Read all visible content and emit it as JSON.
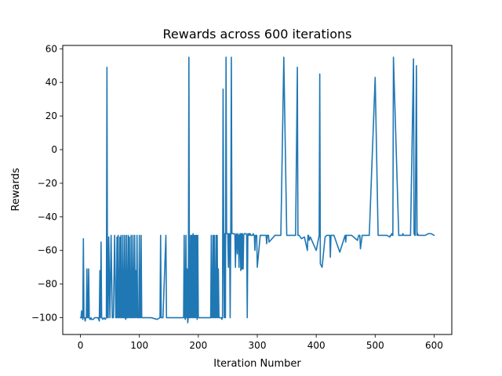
{
  "chart_data": {
    "type": "line",
    "title": "Rewards across 600 iterations",
    "xlabel": "Iteration Number",
    "ylabel": "Rewards",
    "xlim": [
      -30,
      630
    ],
    "ylim": [
      -110,
      62
    ],
    "xticks": [
      0,
      100,
      200,
      300,
      400,
      500,
      600
    ],
    "yticks": [
      -100,
      -80,
      -60,
      -40,
      -20,
      0,
      20,
      40,
      60
    ],
    "tick_labels_x": [
      "0",
      "100",
      "200",
      "300",
      "400",
      "500",
      "600"
    ],
    "tick_labels_y": [
      "−100",
      "−80",
      "−60",
      "−40",
      "−20",
      "0",
      "20",
      "40",
      "60"
    ],
    "grid": false,
    "series": [
      {
        "name": "rewards",
        "color": "#1f77b4",
        "x": [
          0,
          1,
          2,
          3,
          4,
          5,
          6,
          7,
          8,
          9,
          10,
          11,
          12,
          13,
          14,
          15,
          16,
          17,
          18,
          19,
          20,
          22,
          24,
          26,
          28,
          30,
          32,
          33,
          34,
          35,
          36,
          38,
          40,
          42,
          44,
          45,
          46,
          47,
          48,
          50,
          52,
          54,
          56,
          58,
          60,
          61,
          62,
          63,
          64,
          65,
          66,
          67,
          68,
          69,
          70,
          71,
          72,
          73,
          74,
          75,
          76,
          77,
          78,
          79,
          80,
          81,
          82,
          83,
          84,
          85,
          86,
          87,
          88,
          89,
          90,
          91,
          92,
          93,
          94,
          95,
          96,
          97,
          98,
          99,
          100,
          101,
          102,
          103,
          104,
          105,
          110,
          120,
          130,
          135,
          136,
          137,
          140,
          145,
          146,
          147,
          150,
          155,
          160,
          165,
          170,
          175,
          176,
          177,
          178,
          179,
          180,
          181,
          182,
          183,
          184,
          185,
          186,
          187,
          188,
          189,
          190,
          191,
          192,
          193,
          194,
          195,
          196,
          197,
          198,
          199,
          200,
          205,
          210,
          215,
          220,
          221,
          222,
          223,
          224,
          225,
          226,
          227,
          228,
          229,
          230,
          231,
          232,
          233,
          234,
          235,
          236,
          237,
          238,
          239,
          240,
          241,
          242,
          243,
          244,
          245,
          246,
          247,
          248,
          249,
          250,
          251,
          252,
          253,
          254,
          255,
          256,
          257,
          258,
          259,
          260,
          261,
          262,
          263,
          264,
          265,
          266,
          267,
          268,
          269,
          270,
          271,
          272,
          273,
          274,
          275,
          276,
          277,
          278,
          279,
          280,
          281,
          282,
          283,
          284,
          285,
          286,
          287,
          288,
          289,
          290,
          291,
          292,
          293,
          294,
          295,
          296,
          297,
          298,
          299,
          300,
          305,
          310,
          312,
          313,
          314,
          315,
          316,
          317,
          318,
          319,
          320,
          330,
          340,
          345,
          350,
          352,
          353,
          354,
          360,
          365,
          368,
          369,
          370,
          371,
          375,
          380,
          385,
          386,
          387,
          388,
          390,
          400,
          405,
          406,
          407,
          410,
          415,
          418,
          420,
          421,
          422,
          423,
          424,
          425,
          426,
          430,
          440,
          449,
          450,
          451,
          460,
          470,
          472,
          473,
          474,
          475,
          478,
          480,
          490,
          500,
          505,
          506,
          507,
          510,
          520,
          525,
          526,
          527,
          528,
          529,
          530,
          531,
          540,
          545,
          546,
          547,
          548,
          550,
          555,
          560,
          565,
          566,
          567,
          568,
          570,
          571,
          572,
          573,
          575,
          580,
          585,
          590,
          595,
          600
        ],
        "values": [
          -100,
          -100,
          -96,
          -100,
          -101,
          -53,
          -100,
          -100,
          -102,
          -100,
          -100,
          -71,
          -100,
          -100,
          -71,
          -100,
          -101,
          -101,
          -100,
          -101,
          -101,
          -101,
          -100,
          -100,
          -100,
          -100,
          -102,
          -72,
          -100,
          -55,
          -100,
          -101,
          -100,
          -101,
          -100,
          49,
          -100,
          -100,
          -52,
          -100,
          -51,
          -100,
          -100,
          -51,
          -100,
          -100,
          -52,
          -100,
          -51,
          -100,
          -100,
          -52,
          -100,
          -51,
          -100,
          -100,
          -51,
          -100,
          -100,
          -51,
          -100,
          -101,
          -51,
          -100,
          -100,
          -51,
          -100,
          -52,
          -100,
          -100,
          -51,
          -100,
          -100,
          -51,
          -100,
          -100,
          -51,
          -100,
          -72,
          -100,
          -51,
          -100,
          -100,
          -100,
          -51,
          -100,
          -100,
          -51,
          -100,
          -100,
          -100,
          -100,
          -101,
          -100,
          -51,
          -100,
          -100,
          -51,
          -100,
          -100,
          -100,
          -100,
          -100,
          -100,
          -100,
          -100,
          -51,
          -100,
          -101,
          -51,
          -100,
          -71,
          -103,
          -100,
          55,
          -100,
          -100,
          -51,
          -100,
          -51,
          -100,
          -50,
          -100,
          -51,
          -100,
          -51,
          -100,
          -51,
          -101,
          -51,
          -100,
          -100,
          -100,
          -100,
          -100,
          -100,
          -51,
          -100,
          -100,
          -51,
          -100,
          -51,
          -100,
          -100,
          -51,
          -100,
          -51,
          -100,
          -71,
          -100,
          -100,
          -100,
          -100,
          -100,
          -101,
          -100,
          36,
          -50,
          -100,
          -50,
          -100,
          55,
          -50,
          -50,
          -50,
          -70,
          -50,
          -50,
          -100,
          -50,
          55,
          -50,
          -50,
          -50,
          -50,
          -50,
          -51,
          -70,
          -50,
          -51,
          -62,
          -50,
          -51,
          -70,
          -51,
          -50,
          -72,
          -50,
          -71,
          -50,
          -71,
          -51,
          -50,
          -50,
          -50,
          -50,
          -51,
          -100,
          -50,
          -51,
          -50,
          -51,
          -50,
          -51,
          -51,
          -51,
          -51,
          -50,
          -51,
          -51,
          -60,
          -51,
          -51,
          -51,
          -70,
          -51,
          -51,
          -51,
          -51,
          -51,
          -51,
          -56,
          -51,
          -51,
          -51,
          -55,
          -51,
          -51,
          55,
          -51,
          -51,
          -51,
          -51,
          -51,
          -51,
          49,
          -51,
          -51,
          -51,
          -53,
          -52,
          -60,
          -51,
          -51,
          -54,
          -52,
          -60,
          -51,
          45,
          -68,
          -70,
          -52,
          -51,
          -51,
          -51,
          -51,
          -51,
          -64,
          -51,
          -51,
          -51,
          -61,
          -51,
          -55,
          -51,
          -51,
          -54,
          -51,
          -51,
          -51,
          -59,
          -51,
          -51,
          -51,
          43,
          -51,
          -51,
          -51,
          -51,
          -51,
          -52,
          -51,
          -51,
          -50,
          -51,
          -51,
          55,
          -51,
          -51,
          -51,
          -50,
          -51,
          -51,
          -51,
          -51,
          54,
          -50,
          -51,
          -51,
          50,
          -51,
          -50,
          -51,
          -51,
          -51,
          -51,
          -50,
          -50,
          -51
        ]
      }
    ]
  }
}
